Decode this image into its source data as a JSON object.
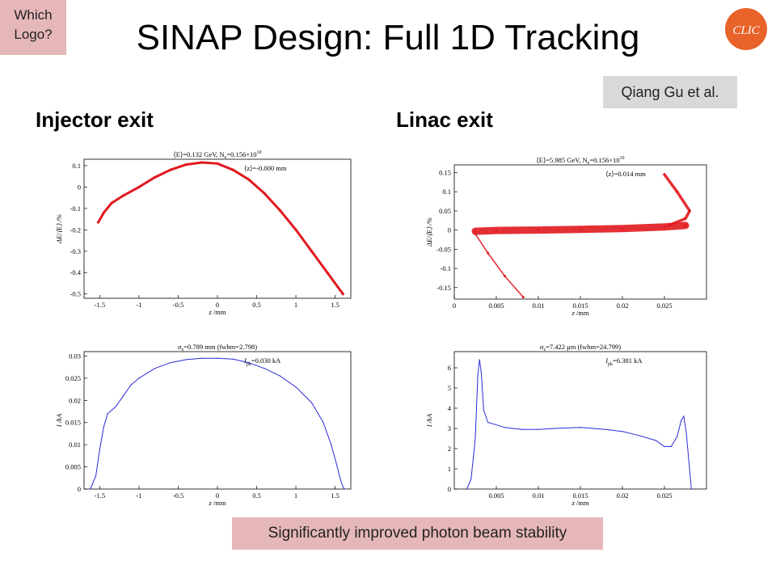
{
  "slide": {
    "title": "SINAP Design: Full 1D Tracking",
    "tag": "Which\nLogo?",
    "tag_lines": [
      "Which",
      "Logo?"
    ],
    "author": "Qiang Gu et al.",
    "left_heading": "Injector exit",
    "right_heading": "Linac exit",
    "footer": "Significantly improved photon beam stability",
    "logo": {
      "icon": "clic-logo",
      "text": "CLIC",
      "color": "#e8622a"
    }
  },
  "chart_data": [
    {
      "id": "inj-phase",
      "type": "scatter",
      "color": "#e0191f",
      "header": "⟨E⟩=0.132 GeV, Ne=0.156×10^10",
      "header_parts": [
        "⟨E⟩=0.132 GeV, N",
        "e",
        "=0.156×10",
        "10"
      ],
      "annotation": "⟨z⟩=-0.000 mm",
      "xlabel_italic": "z",
      "xlabel_unit": " /mm",
      "ylabel": "ΔE/⟨E⟩ /%",
      "xlim": [
        -1.7,
        1.7
      ],
      "ylim": [
        -0.52,
        0.13
      ],
      "xticks": [
        -1.5,
        -1,
        -0.5,
        0,
        0.5,
        1,
        1.5
      ],
      "xtick_labels": [
        "-1.5",
        "-1",
        "-0.5",
        "0",
        "0.5",
        "1",
        "1.5"
      ],
      "yticks": [
        0.1,
        0,
        -0.1,
        -0.2,
        -0.3,
        -0.4,
        -0.5
      ],
      "ytick_labels": [
        "0.1",
        "0",
        "-0.1",
        "-0.2",
        "-0.3",
        "-0.4",
        "-0.5"
      ],
      "x": [
        -1.52,
        -1.45,
        -1.35,
        -1.2,
        -1.0,
        -0.8,
        -0.6,
        -0.4,
        -0.2,
        0,
        0.2,
        0.4,
        0.6,
        0.8,
        1.0,
        1.2,
        1.4,
        1.6
      ],
      "y": [
        -0.165,
        -0.12,
        -0.075,
        -0.04,
        0.0,
        0.045,
        0.08,
        0.105,
        0.115,
        0.11,
        0.08,
        0.035,
        -0.03,
        -0.11,
        -0.2,
        -0.3,
        -0.4,
        -0.5
      ]
    },
    {
      "id": "linac-phase",
      "type": "scatter",
      "color": "#e0191f",
      "header": "⟨E⟩=5.985 GeV, Ne=0.156×10^10",
      "header_parts": [
        "⟨E⟩=5.985 GeV, N",
        "e",
        "=0.156×10",
        "10"
      ],
      "annotation": "⟨z⟩=0.014 mm",
      "xlabel_italic": "z",
      "xlabel_unit": " /mm",
      "ylabel": "ΔE/⟨E⟩ /%",
      "xlim": [
        0,
        0.03
      ],
      "ylim": [
        -0.18,
        0.17
      ],
      "xticks": [
        0,
        0.005,
        0.01,
        0.015,
        0.02,
        0.025
      ],
      "xtick_labels": [
        "0",
        "0.005",
        "0.01",
        "0.015",
        "0.02",
        "0.025"
      ],
      "yticks": [
        0.15,
        0.1,
        0.05,
        0,
        -0.05,
        -0.1,
        -0.15
      ],
      "ytick_labels": [
        "0.15",
        "0.1",
        "0.05",
        "0",
        "-0.05",
        "-0.1",
        "-0.15"
      ],
      "core": {
        "x": [
          0.0025,
          0.005,
          0.01,
          0.015,
          0.02,
          0.025,
          0.0275
        ],
        "y": [
          -0.003,
          -0.001,
          0.0,
          0.002,
          0.004,
          0.008,
          0.012
        ]
      },
      "tail_low": {
        "x": [
          0.0025,
          0.004,
          0.006,
          0.0082
        ],
        "y": [
          -0.01,
          -0.06,
          -0.12,
          -0.175
        ]
      },
      "tail_high": {
        "x": [
          0.0255,
          0.0275,
          0.028,
          0.0265,
          0.025
        ],
        "y": [
          0.012,
          0.03,
          0.05,
          0.1,
          0.145
        ]
      }
    },
    {
      "id": "inj-current",
      "type": "line",
      "color": "#2b2bd6",
      "header": "σz=0.789 mm (fwhm=2.798)",
      "header_parts": [
        "σ",
        "z",
        "=0.789 mm (fwhm=2.798)"
      ],
      "annotation": "Ipk=0.030 kA",
      "annotation_parts": [
        "I",
        "pk",
        "=0.030 kA"
      ],
      "xlabel_italic": "z",
      "xlabel_unit": " /mm",
      "ylabel": "I /kA",
      "xlim": [
        -1.7,
        1.7
      ],
      "ylim": [
        0,
        0.031
      ],
      "xticks": [
        -1.5,
        -1,
        -0.5,
        0,
        0.5,
        1,
        1.5
      ],
      "xtick_labels": [
        "-1.5",
        "-1",
        "-0.5",
        "0",
        "0.5",
        "1",
        "1.5"
      ],
      "yticks": [
        0,
        0.005,
        0.01,
        0.015,
        0.02,
        0.025,
        0.03
      ],
      "ytick_labels": [
        "0",
        "0.005",
        "0.01",
        "0.015",
        "0.02",
        "0.025",
        "0.03"
      ],
      "x": [
        -1.62,
        -1.55,
        -1.5,
        -1.45,
        -1.4,
        -1.3,
        -1.2,
        -1.1,
        -1.0,
        -0.8,
        -0.6,
        -0.4,
        -0.2,
        0,
        0.2,
        0.4,
        0.6,
        0.8,
        1.0,
        1.2,
        1.35,
        1.45,
        1.52,
        1.57,
        1.6,
        1.62
      ],
      "y": [
        0,
        0.003,
        0.009,
        0.014,
        0.017,
        0.0185,
        0.021,
        0.0235,
        0.025,
        0.0272,
        0.0285,
        0.0292,
        0.0295,
        0.0295,
        0.0293,
        0.0285,
        0.0272,
        0.0255,
        0.023,
        0.0195,
        0.015,
        0.01,
        0.0055,
        0.002,
        0.0005,
        0
      ]
    },
    {
      "id": "linac-current",
      "type": "line",
      "color": "#2b2bd6",
      "header": "σz=7.422 μm (fwhm=24.799)",
      "header_parts": [
        "σ",
        "z",
        "=7.422 μm (fwhm=24.799)"
      ],
      "annotation": "Ipk=6.381 kA",
      "annotation_parts": [
        "I",
        "pk",
        "=6.381 kA"
      ],
      "xlabel_italic": "z",
      "xlabel_unit": " /mm",
      "ylabel": "I /kA",
      "xlim": [
        0,
        0.03
      ],
      "ylim": [
        0,
        6.8
      ],
      "xticks": [
        0.005,
        0.01,
        0.015,
        0.02,
        0.025
      ],
      "xtick_labels": [
        "0.005",
        "0.01",
        "0.015",
        "0.02",
        "0.025"
      ],
      "yticks": [
        0,
        1,
        2,
        3,
        4,
        5,
        6
      ],
      "ytick_labels": [
        "0",
        "1",
        "2",
        "3",
        "4",
        "5",
        "6"
      ],
      "x": [
        0.0015,
        0.002,
        0.0025,
        0.0028,
        0.003,
        0.0032,
        0.0035,
        0.004,
        0.006,
        0.008,
        0.01,
        0.012,
        0.015,
        0.018,
        0.02,
        0.022,
        0.024,
        0.025,
        0.0258,
        0.0265,
        0.027,
        0.0273,
        0.0276,
        0.0282
      ],
      "y": [
        0,
        0.5,
        2.5,
        5.6,
        6.4,
        5.8,
        3.9,
        3.3,
        3.05,
        2.95,
        2.95,
        3.0,
        3.05,
        2.95,
        2.85,
        2.65,
        2.4,
        2.1,
        2.1,
        2.6,
        3.4,
        3.6,
        2.8,
        0
      ]
    }
  ]
}
